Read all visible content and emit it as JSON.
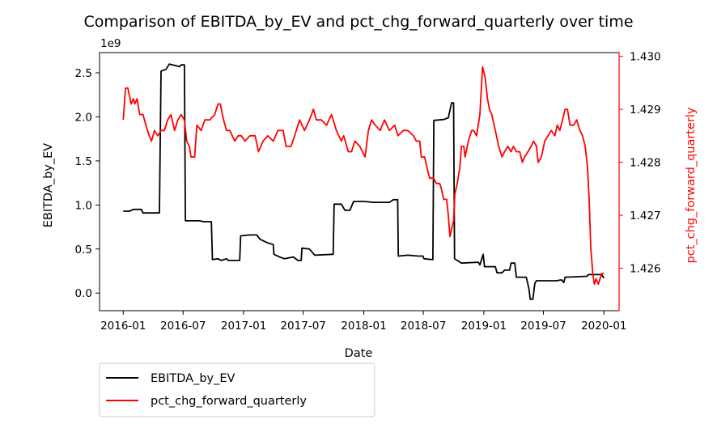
{
  "chart_data": {
    "type": "line",
    "title": "Comparison of EBITDA_by_EV and pct_chg_forward_quarterly over time",
    "xlabel": "Date",
    "ylabel": "EBITDA_by_EV",
    "ylabel_right": "pct_chg_forward_quarterly",
    "offset_text": "1e9",
    "xlim": [
      "2015-10-21",
      "2020-02-16"
    ],
    "ylim": [
      -0.2,
      2.73
    ],
    "ylim_right": [
      1.4252,
      1.43007
    ],
    "x_ticks": [
      "2016-01",
      "2016-07",
      "2017-01",
      "2017-07",
      "2018-01",
      "2018-07",
      "2019-01",
      "2019-07",
      "2020-01"
    ],
    "x_tick_dates": [
      "2016-01-01",
      "2016-07-01",
      "2017-01-01",
      "2017-07-01",
      "2018-01-01",
      "2018-07-01",
      "2019-01-01",
      "2019-07-01",
      "2020-01-01"
    ],
    "y_ticks": [
      0.0,
      0.5,
      1.0,
      1.5,
      2.0,
      2.5
    ],
    "y_tick_labels": [
      "0.0",
      "0.5",
      "1.0",
      "1.5",
      "2.0",
      "2.5"
    ],
    "y_ticks_right": [
      1.426,
      1.427,
      1.428,
      1.429,
      1.43
    ],
    "y_tick_labels_right": [
      "1.426",
      "1.427",
      "1.428",
      "1.429",
      "1.430"
    ],
    "legend_placement": "below-left",
    "grid": false,
    "series": [
      {
        "name": "EBITDA_by_EV",
        "axis": "left",
        "color": "#000000",
        "points": [
          [
            "2016-01-01",
            0.93
          ],
          [
            "2016-01-20",
            0.93
          ],
          [
            "2016-02-01",
            0.95
          ],
          [
            "2016-02-25",
            0.95
          ],
          [
            "2016-03-01",
            0.91
          ],
          [
            "2016-04-20",
            0.91
          ],
          [
            "2016-04-25",
            2.52
          ],
          [
            "2016-05-10",
            2.54
          ],
          [
            "2016-05-20",
            2.6
          ],
          [
            "2016-06-10",
            2.58
          ],
          [
            "2016-06-20",
            2.57
          ],
          [
            "2016-06-25",
            2.59
          ],
          [
            "2016-07-05",
            2.59
          ],
          [
            "2016-07-08",
            0.82
          ],
          [
            "2016-08-20",
            0.82
          ],
          [
            "2016-09-01",
            0.81
          ],
          [
            "2016-09-25",
            0.81
          ],
          [
            "2016-09-28",
            0.38
          ],
          [
            "2016-10-15",
            0.39
          ],
          [
            "2016-10-25",
            0.37
          ],
          [
            "2016-11-10",
            0.39
          ],
          [
            "2016-11-15",
            0.37
          ],
          [
            "2016-12-20",
            0.37
          ],
          [
            "2016-12-23",
            0.65
          ],
          [
            "2017-01-20",
            0.66
          ],
          [
            "2017-02-10",
            0.66
          ],
          [
            "2017-02-20",
            0.61
          ],
          [
            "2017-03-15",
            0.57
          ],
          [
            "2017-04-01",
            0.55
          ],
          [
            "2017-04-03",
            0.44
          ],
          [
            "2017-04-20",
            0.41
          ],
          [
            "2017-05-05",
            0.39
          ],
          [
            "2017-06-01",
            0.41
          ],
          [
            "2017-06-15",
            0.37
          ],
          [
            "2017-06-25",
            0.37
          ],
          [
            "2017-06-27",
            0.51
          ],
          [
            "2017-07-20",
            0.5
          ],
          [
            "2017-08-05",
            0.43
          ],
          [
            "2017-09-30",
            0.44
          ],
          [
            "2017-10-03",
            1.01
          ],
          [
            "2017-10-25",
            1.01
          ],
          [
            "2017-11-05",
            0.94
          ],
          [
            "2017-11-20",
            0.94
          ],
          [
            "2017-12-01",
            1.04
          ],
          [
            "2018-01-01",
            1.04
          ],
          [
            "2018-02-01",
            1.03
          ],
          [
            "2018-03-20",
            1.03
          ],
          [
            "2018-04-01",
            1.06
          ],
          [
            "2018-04-14",
            1.06
          ],
          [
            "2018-04-16",
            0.42
          ],
          [
            "2018-05-15",
            0.43
          ],
          [
            "2018-06-15",
            0.42
          ],
          [
            "2018-06-30",
            0.42
          ],
          [
            "2018-07-03",
            0.39
          ],
          [
            "2018-07-30",
            0.38
          ],
          [
            "2018-08-02",
            1.96
          ],
          [
            "2018-09-01",
            1.97
          ],
          [
            "2018-09-15",
            1.99
          ],
          [
            "2018-09-25",
            2.16
          ],
          [
            "2018-10-01",
            2.16
          ],
          [
            "2018-10-04",
            0.39
          ],
          [
            "2018-10-25",
            0.34
          ],
          [
            "2018-12-15",
            0.35
          ],
          [
            "2018-12-20",
            0.32
          ],
          [
            "2018-12-30",
            0.44
          ],
          [
            "2019-01-03",
            0.3
          ],
          [
            "2019-02-05",
            0.3
          ],
          [
            "2019-02-10",
            0.23
          ],
          [
            "2019-02-25",
            0.23
          ],
          [
            "2019-03-05",
            0.26
          ],
          [
            "2019-03-20",
            0.26
          ],
          [
            "2019-03-25",
            0.34
          ],
          [
            "2019-04-05",
            0.34
          ],
          [
            "2019-04-10",
            0.18
          ],
          [
            "2019-05-10",
            0.18
          ],
          [
            "2019-05-18",
            0.05
          ],
          [
            "2019-05-22",
            -0.07
          ],
          [
            "2019-05-30",
            -0.07
          ],
          [
            "2019-06-05",
            0.11
          ],
          [
            "2019-06-10",
            0.14
          ],
          [
            "2019-07-15",
            0.14
          ],
          [
            "2019-08-10",
            0.14
          ],
          [
            "2019-08-25",
            0.15
          ],
          [
            "2019-09-01",
            0.12
          ],
          [
            "2019-09-05",
            0.18
          ],
          [
            "2019-11-10",
            0.19
          ],
          [
            "2019-11-15",
            0.21
          ],
          [
            "2019-12-25",
            0.21
          ],
          [
            "2020-01-01",
            0.17
          ]
        ]
      },
      {
        "name": "pct_chg_forward_quarterly",
        "axis": "right",
        "color": "#ff0000",
        "points": [
          [
            "2016-01-01",
            1.4288
          ],
          [
            "2016-01-08",
            1.4294
          ],
          [
            "2016-01-15",
            1.4294
          ],
          [
            "2016-01-25",
            1.4291
          ],
          [
            "2016-02-01",
            1.4292
          ],
          [
            "2016-02-05",
            1.4291
          ],
          [
            "2016-02-12",
            1.4292
          ],
          [
            "2016-02-20",
            1.4289
          ],
          [
            "2016-03-01",
            1.4289
          ],
          [
            "2016-03-10",
            1.4287
          ],
          [
            "2016-03-20",
            1.4285
          ],
          [
            "2016-03-27",
            1.4284
          ],
          [
            "2016-04-05",
            1.4286
          ],
          [
            "2016-04-15",
            1.4285
          ],
          [
            "2016-04-25",
            1.4286
          ],
          [
            "2016-05-05",
            1.4286
          ],
          [
            "2016-05-15",
            1.4288
          ],
          [
            "2016-05-25",
            1.4289
          ],
          [
            "2016-06-05",
            1.4286
          ],
          [
            "2016-06-15",
            1.4288
          ],
          [
            "2016-06-25",
            1.4289
          ],
          [
            "2016-07-05",
            1.4288
          ],
          [
            "2016-07-12",
            1.4284
          ],
          [
            "2016-07-20",
            1.4283
          ],
          [
            "2016-07-25",
            1.4281
          ],
          [
            "2016-08-05",
            1.4281
          ],
          [
            "2016-08-12",
            1.4287
          ],
          [
            "2016-08-25",
            1.4286
          ],
          [
            "2016-09-05",
            1.4288
          ],
          [
            "2016-09-20",
            1.4288
          ],
          [
            "2016-10-05",
            1.4289
          ],
          [
            "2016-10-15",
            1.4291
          ],
          [
            "2016-10-22",
            1.4291
          ],
          [
            "2016-11-01",
            1.4288
          ],
          [
            "2016-11-10",
            1.4286
          ],
          [
            "2016-11-20",
            1.4286
          ],
          [
            "2016-12-05",
            1.4284
          ],
          [
            "2016-12-15",
            1.4285
          ],
          [
            "2016-12-25",
            1.4285
          ],
          [
            "2017-01-05",
            1.4284
          ],
          [
            "2017-01-20",
            1.4285
          ],
          [
            "2017-02-05",
            1.4285
          ],
          [
            "2017-02-15",
            1.4282
          ],
          [
            "2017-03-01",
            1.4284
          ],
          [
            "2017-03-15",
            1.4285
          ],
          [
            "2017-04-01",
            1.4284
          ],
          [
            "2017-04-15",
            1.4286
          ],
          [
            "2017-05-01",
            1.4286
          ],
          [
            "2017-05-10",
            1.4283
          ],
          [
            "2017-05-25",
            1.4283
          ],
          [
            "2017-06-05",
            1.4285
          ],
          [
            "2017-06-20",
            1.4288
          ],
          [
            "2017-07-05",
            1.4286
          ],
          [
            "2017-07-20",
            1.4288
          ],
          [
            "2017-08-01",
            1.429
          ],
          [
            "2017-08-10",
            1.4288
          ],
          [
            "2017-08-25",
            1.4288
          ],
          [
            "2017-09-10",
            1.4287
          ],
          [
            "2017-09-25",
            1.4289
          ],
          [
            "2017-10-10",
            1.4286
          ],
          [
            "2017-10-25",
            1.4284
          ],
          [
            "2017-11-01",
            1.4285
          ],
          [
            "2017-11-15",
            1.4282
          ],
          [
            "2017-11-25",
            1.4282
          ],
          [
            "2017-12-05",
            1.4284
          ],
          [
            "2017-12-20",
            1.4283
          ],
          [
            "2018-01-05",
            1.4281
          ],
          [
            "2018-01-15",
            1.4286
          ],
          [
            "2018-01-25",
            1.4288
          ],
          [
            "2018-02-05",
            1.4287
          ],
          [
            "2018-02-20",
            1.4286
          ],
          [
            "2018-03-05",
            1.4288
          ],
          [
            "2018-03-20",
            1.4286
          ],
          [
            "2018-04-05",
            1.4287
          ],
          [
            "2018-04-15",
            1.4285
          ],
          [
            "2018-05-01",
            1.4286
          ],
          [
            "2018-05-15",
            1.4286
          ],
          [
            "2018-06-01",
            1.4285
          ],
          [
            "2018-06-10",
            1.4284
          ],
          [
            "2018-06-20",
            1.4284
          ],
          [
            "2018-06-25",
            1.4281
          ],
          [
            "2018-07-05",
            1.4281
          ],
          [
            "2018-07-12",
            1.4279
          ],
          [
            "2018-07-20",
            1.4277
          ],
          [
            "2018-07-25",
            1.4277
          ],
          [
            "2018-08-01",
            1.4277
          ],
          [
            "2018-08-10",
            1.4276
          ],
          [
            "2018-08-20",
            1.4276
          ],
          [
            "2018-08-25",
            1.4275
          ],
          [
            "2018-09-01",
            1.4273
          ],
          [
            "2018-09-10",
            1.4273
          ],
          [
            "2018-09-15",
            1.427
          ],
          [
            "2018-09-20",
            1.4266
          ],
          [
            "2018-10-01",
            1.4269
          ],
          [
            "2018-10-05",
            1.4274
          ],
          [
            "2018-10-12",
            1.4276
          ],
          [
            "2018-10-20",
            1.4279
          ],
          [
            "2018-10-25",
            1.4283
          ],
          [
            "2018-11-01",
            1.4283
          ],
          [
            "2018-11-05",
            1.4281
          ],
          [
            "2018-11-15",
            1.4284
          ],
          [
            "2018-11-25",
            1.4286
          ],
          [
            "2018-12-01",
            1.4286
          ],
          [
            "2018-12-10",
            1.4285
          ],
          [
            "2018-12-20",
            1.4289
          ],
          [
            "2018-12-28",
            1.4298
          ],
          [
            "2019-01-05",
            1.4296
          ],
          [
            "2019-01-12",
            1.4292
          ],
          [
            "2019-01-18",
            1.429
          ],
          [
            "2019-01-25",
            1.4289
          ],
          [
            "2019-02-05",
            1.4286
          ],
          [
            "2019-02-15",
            1.4283
          ],
          [
            "2019-02-25",
            1.4281
          ],
          [
            "2019-03-05",
            1.4282
          ],
          [
            "2019-03-15",
            1.4283
          ],
          [
            "2019-03-25",
            1.4282
          ],
          [
            "2019-04-01",
            1.4283
          ],
          [
            "2019-04-10",
            1.4282
          ],
          [
            "2019-04-20",
            1.4282
          ],
          [
            "2019-04-28",
            1.428
          ],
          [
            "2019-05-05",
            1.4281
          ],
          [
            "2019-05-15",
            1.4282
          ],
          [
            "2019-05-25",
            1.4283
          ],
          [
            "2019-06-01",
            1.4284
          ],
          [
            "2019-06-10",
            1.4283
          ],
          [
            "2019-06-15",
            1.428
          ],
          [
            "2019-06-25",
            1.4281
          ],
          [
            "2019-07-05",
            1.4284
          ],
          [
            "2019-07-15",
            1.4285
          ],
          [
            "2019-07-25",
            1.4286
          ],
          [
            "2019-08-05",
            1.4285
          ],
          [
            "2019-08-12",
            1.4287
          ],
          [
            "2019-08-20",
            1.4286
          ],
          [
            "2019-08-28",
            1.4288
          ],
          [
            "2019-09-05",
            1.429
          ],
          [
            "2019-09-12",
            1.429
          ],
          [
            "2019-09-20",
            1.4287
          ],
          [
            "2019-10-01",
            1.4287
          ],
          [
            "2019-10-10",
            1.4288
          ],
          [
            "2019-10-20",
            1.4286
          ],
          [
            "2019-10-28",
            1.4285
          ],
          [
            "2019-11-05",
            1.4283
          ],
          [
            "2019-11-12",
            1.4279
          ],
          [
            "2019-11-17",
            1.4273
          ],
          [
            "2019-11-22",
            1.4264
          ],
          [
            "2019-11-28",
            1.4259
          ],
          [
            "2019-12-03",
            1.4257
          ],
          [
            "2019-12-08",
            1.4258
          ],
          [
            "2019-12-15",
            1.4257
          ],
          [
            "2019-12-25",
            1.4259
          ],
          [
            "2020-01-01",
            1.4259
          ]
        ]
      }
    ]
  }
}
